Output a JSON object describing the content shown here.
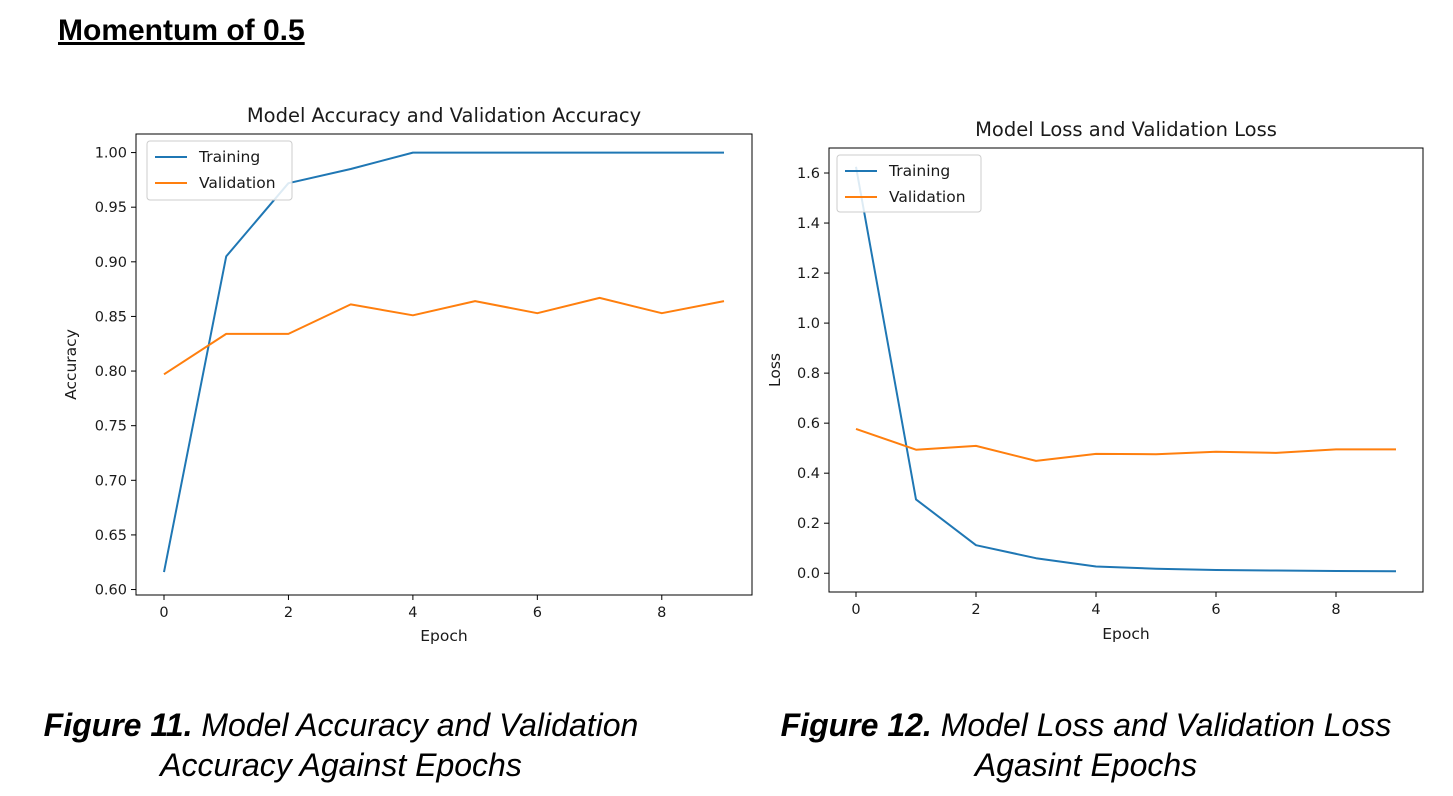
{
  "heading": "Momentum of 0.5",
  "captions": [
    {
      "fig": "Figure 11.",
      "line1": "Model Accuracy and Validation",
      "line2": "Accuracy Against Epochs"
    },
    {
      "fig": "Figure 12.",
      "line1": "Model Loss and Validation Loss",
      "line2": "Agasint Epochs"
    }
  ],
  "chart_data": [
    {
      "type": "line",
      "title": "Model Accuracy and Validation Accuracy",
      "xlabel": "Epoch",
      "ylabel": "Accuracy",
      "x": [
        0,
        1,
        2,
        3,
        4,
        5,
        6,
        7,
        8,
        9
      ],
      "xlim": [
        -0.45,
        9.45
      ],
      "ylim": [
        0.595,
        1.017
      ],
      "xticks": [
        0,
        2,
        4,
        6,
        8
      ],
      "xtick_labels": [
        "0",
        "2",
        "4",
        "6",
        "8"
      ],
      "yticks": [
        0.6,
        0.65,
        0.7,
        0.75,
        0.8,
        0.85,
        0.9,
        0.95,
        1.0
      ],
      "ytick_labels": [
        "0.60",
        "0.65",
        "0.70",
        "0.75",
        "0.80",
        "0.85",
        "0.90",
        "0.95",
        "1.00"
      ],
      "legend_position": "top-left",
      "grid": false,
      "series": [
        {
          "name": "Training",
          "color": "#1f77b4",
          "values": [
            0.616,
            0.905,
            0.972,
            0.985,
            1.0,
            1.0,
            1.0,
            1.0,
            1.0,
            1.0
          ]
        },
        {
          "name": "Validation",
          "color": "#ff7f0e",
          "values": [
            0.797,
            0.834,
            0.834,
            0.861,
            0.851,
            0.864,
            0.853,
            0.867,
            0.853,
            0.864
          ]
        }
      ]
    },
    {
      "type": "line",
      "title": "Model Loss and Validation Loss",
      "xlabel": "Epoch",
      "ylabel": "Loss",
      "x": [
        0,
        1,
        2,
        3,
        4,
        5,
        6,
        7,
        8,
        9
      ],
      "xlim": [
        -0.45,
        9.45
      ],
      "ylim": [
        -0.075,
        1.7
      ],
      "xticks": [
        0,
        2,
        4,
        6,
        8
      ],
      "xtick_labels": [
        "0",
        "2",
        "4",
        "6",
        "8"
      ],
      "yticks": [
        0.0,
        0.2,
        0.4,
        0.6,
        0.8,
        1.0,
        1.2,
        1.4,
        1.6
      ],
      "ytick_labels": [
        "0.0",
        "0.2",
        "0.4",
        "0.6",
        "0.8",
        "1.0",
        "1.2",
        "1.4",
        "1.6"
      ],
      "legend_position": "top-left",
      "grid": false,
      "series": [
        {
          "name": "Training",
          "color": "#1f77b4",
          "values": [
            1.625,
            0.295,
            0.112,
            0.06,
            0.027,
            0.018,
            0.013,
            0.011,
            0.009,
            0.008
          ]
        },
        {
          "name": "Validation",
          "color": "#ff7f0e",
          "values": [
            0.577,
            0.494,
            0.509,
            0.449,
            0.477,
            0.476,
            0.486,
            0.481,
            0.495,
            0.495
          ]
        }
      ]
    }
  ]
}
